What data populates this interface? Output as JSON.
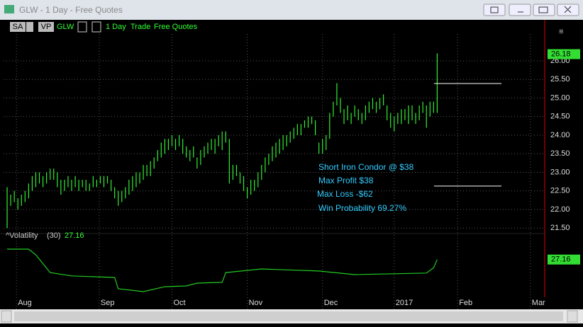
{
  "window": {
    "title": "GLW - 1 Day - Free Quotes",
    "toolbar": {
      "layout": "SA",
      "view": "VP",
      "symbol": "GLW",
      "interval": "1 Day",
      "mode": "Trade",
      "feed": "Free Quotes"
    }
  },
  "chart_data": [
    {
      "type": "range",
      "color": "#33ee33",
      "low": [
        21.5,
        22.1,
        22.2,
        22.0,
        22.1,
        22.2,
        22.3,
        22.5,
        22.6,
        22.7,
        22.6,
        22.7,
        22.8,
        22.8,
        22.6,
        22.4,
        22.5,
        22.6,
        22.5,
        22.6,
        22.5,
        22.6,
        22.5,
        22.5,
        22.6,
        22.6,
        22.7,
        22.6,
        22.7,
        22.5,
        22.3,
        22.1,
        22.2,
        22.3,
        22.4,
        22.5,
        22.6,
        22.7,
        22.8,
        22.9,
        22.9,
        23.1,
        23.3,
        23.4,
        23.5,
        23.6,
        23.7,
        23.6,
        23.7,
        23.5,
        23.4,
        23.3,
        23.4,
        23.1,
        23.2,
        23.4,
        23.5,
        23.6,
        23.5,
        23.7,
        23.6,
        23.8,
        22.7,
        22.8,
        22.9,
        22.7,
        22.5,
        22.3,
        22.4,
        22.5,
        22.6,
        22.8,
        23.0,
        23.2,
        23.3,
        23.4,
        23.5,
        23.6,
        23.7,
        23.8,
        23.9,
        24.0,
        24.0,
        24.2,
        24.2,
        24.3,
        24.0,
        23.5,
        23.5,
        23.6,
        23.9,
        24.5,
        24.8,
        24.6,
        24.3,
        24.4,
        24.3,
        24.5,
        24.4,
        24.3,
        24.4,
        24.6,
        24.7,
        24.6,
        24.7,
        24.8,
        24.4,
        24.2,
        24.1,
        24.3,
        24.3,
        24.4,
        24.3,
        24.4,
        24.3,
        24.4,
        24.6,
        24.2,
        24.5,
        24.6,
        24.6
      ],
      "high": [
        22.6,
        22.4,
        22.5,
        22.3,
        22.4,
        22.5,
        22.7,
        22.9,
        23.0,
        23.0,
        22.9,
        23.0,
        23.1,
        23.1,
        23.0,
        22.8,
        22.8,
        22.9,
        22.8,
        22.9,
        22.8,
        22.8,
        22.8,
        22.7,
        22.9,
        22.8,
        22.9,
        22.9,
        22.9,
        22.8,
        22.6,
        22.5,
        22.5,
        22.6,
        22.8,
        22.9,
        23.0,
        23.0,
        23.2,
        23.2,
        23.3,
        23.4,
        23.6,
        23.8,
        23.9,
        23.9,
        24.0,
        23.9,
        24.0,
        23.9,
        23.7,
        23.6,
        23.7,
        23.4,
        23.6,
        23.7,
        23.8,
        23.9,
        23.9,
        24.0,
        24.1,
        24.1,
        23.9,
        23.2,
        23.2,
        23.0,
        22.9,
        22.6,
        22.8,
        22.8,
        23.0,
        23.2,
        23.4,
        23.5,
        23.7,
        23.8,
        23.9,
        24.0,
        24.0,
        24.1,
        24.2,
        24.3,
        24.3,
        24.4,
        24.5,
        24.5,
        24.4,
        23.8,
        23.9,
        24.0,
        24.6,
        24.9,
        25.4,
        25.0,
        24.7,
        24.8,
        24.6,
        24.8,
        24.7,
        24.6,
        24.8,
        24.9,
        25.0,
        24.9,
        25.0,
        25.1,
        24.8,
        24.6,
        24.5,
        24.6,
        24.7,
        24.7,
        24.8,
        24.8,
        24.6,
        24.8,
        24.9,
        24.8,
        24.9,
        24.9,
        26.2
      ],
      "last_price": 26.18,
      "xlim": [
        -1,
        150
      ],
      "xticks": [
        {
          "value": 2.6,
          "label": "Aug"
        },
        {
          "value": 25.7,
          "label": "Sep"
        },
        {
          "value": 46,
          "label": "Oct"
        },
        {
          "value": 67,
          "label": "Nov"
        },
        {
          "value": 88,
          "label": "Dec"
        },
        {
          "value": 108,
          "label": "2017"
        },
        {
          "value": 125.7,
          "label": "Feb"
        },
        {
          "value": 146,
          "label": "Mar"
        }
      ],
      "ylim": [
        21.5,
        26.78
      ],
      "yticks": [
        {
          "value": 21.5,
          "label": "21.50"
        },
        {
          "value": 22,
          "label": "22.00"
        },
        {
          "value": 22.5,
          "label": "22.50"
        },
        {
          "value": 23,
          "label": "23.00"
        },
        {
          "value": 23.5,
          "label": "23.50"
        },
        {
          "value": 24,
          "label": "24.00"
        },
        {
          "value": 24.5,
          "label": "24.50"
        },
        {
          "value": 25,
          "label": "25.00"
        },
        {
          "value": 25.5,
          "label": "25.50"
        },
        {
          "value": 26,
          "label": "26.00"
        }
      ],
      "grid": true,
      "levels": [
        25.39,
        22.63
      ],
      "annotations": [
        "Short Iron Condor @ $38",
        "Max Profit $38",
        "Max Loss -$62",
        "Win Probability 69.27%"
      ]
    },
    {
      "type": "line",
      "name": "^Volatility",
      "period_label": "(30)",
      "color": "#22cc22",
      "x": [
        0,
        6,
        8,
        12,
        18,
        30,
        31,
        38,
        44,
        50,
        53,
        60,
        61,
        71,
        87,
        97,
        117,
        119,
        120
      ],
      "values": [
        31.2,
        31.2,
        29.0,
        22.1,
        20.8,
        20.2,
        15.8,
        14.7,
        16.6,
        16.9,
        18.0,
        18.3,
        22.1,
        23.5,
        22.7,
        21.3,
        21.9,
        24.0,
        27.16
      ],
      "current": 27.16,
      "ylim": [
        12.5,
        34.5
      ]
    }
  ]
}
